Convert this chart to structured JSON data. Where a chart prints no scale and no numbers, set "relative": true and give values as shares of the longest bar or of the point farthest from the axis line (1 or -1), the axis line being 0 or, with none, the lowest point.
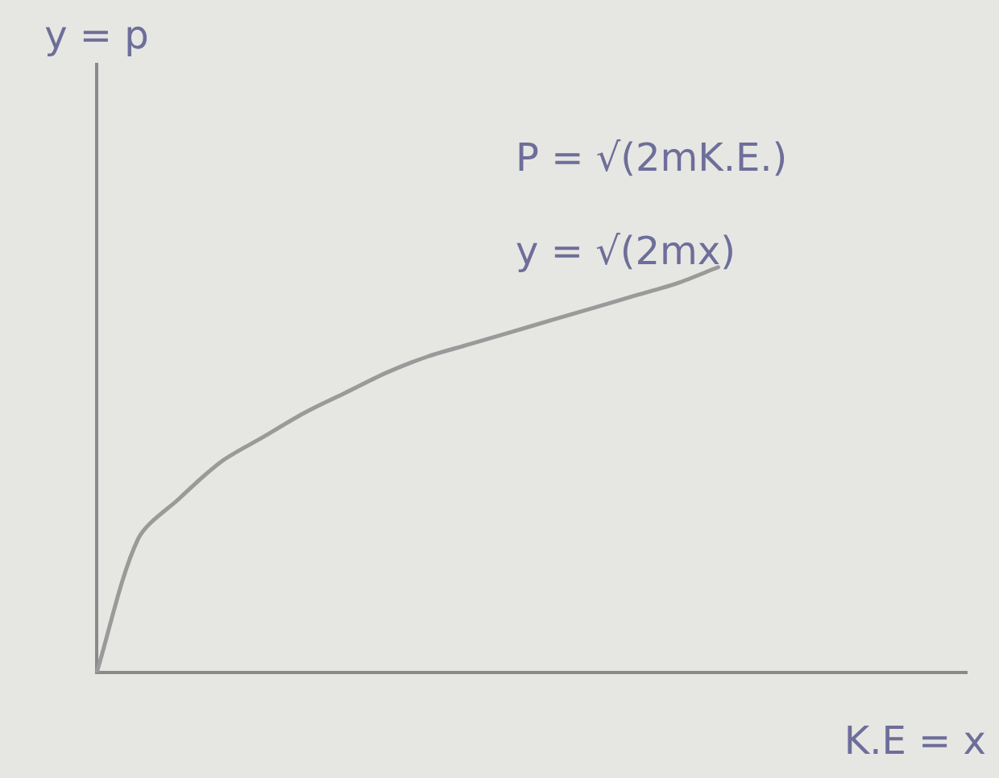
{
  "chart_data": {
    "type": "line",
    "relative": true,
    "xlabel": "K.E = x",
    "annotations": [
      "y = p",
      "P = √(2mK.E.)",
      "y = √(2mx)"
    ],
    "categories": [
      null,
      null,
      null,
      null,
      null,
      null,
      null,
      null,
      null,
      null,
      null,
      null,
      null,
      null,
      null,
      null,
      null,
      null,
      null,
      null,
      null,
      null
    ],
    "series": [
      {
        "color": "#9a9a9a",
        "values": [
          0,
          0.33,
          0.43,
          0.52,
          0.58,
          0.64,
          0.69,
          0.74,
          0.78,
          0.81,
          0.84,
          0.87,
          0.9,
          0.93,
          0.96,
          1,
          null,
          null,
          null,
          null,
          null,
          null
        ]
      }
    ],
    "grid": false,
    "legend": false,
    "marker": "none",
    "line_style": "solid"
  }
}
